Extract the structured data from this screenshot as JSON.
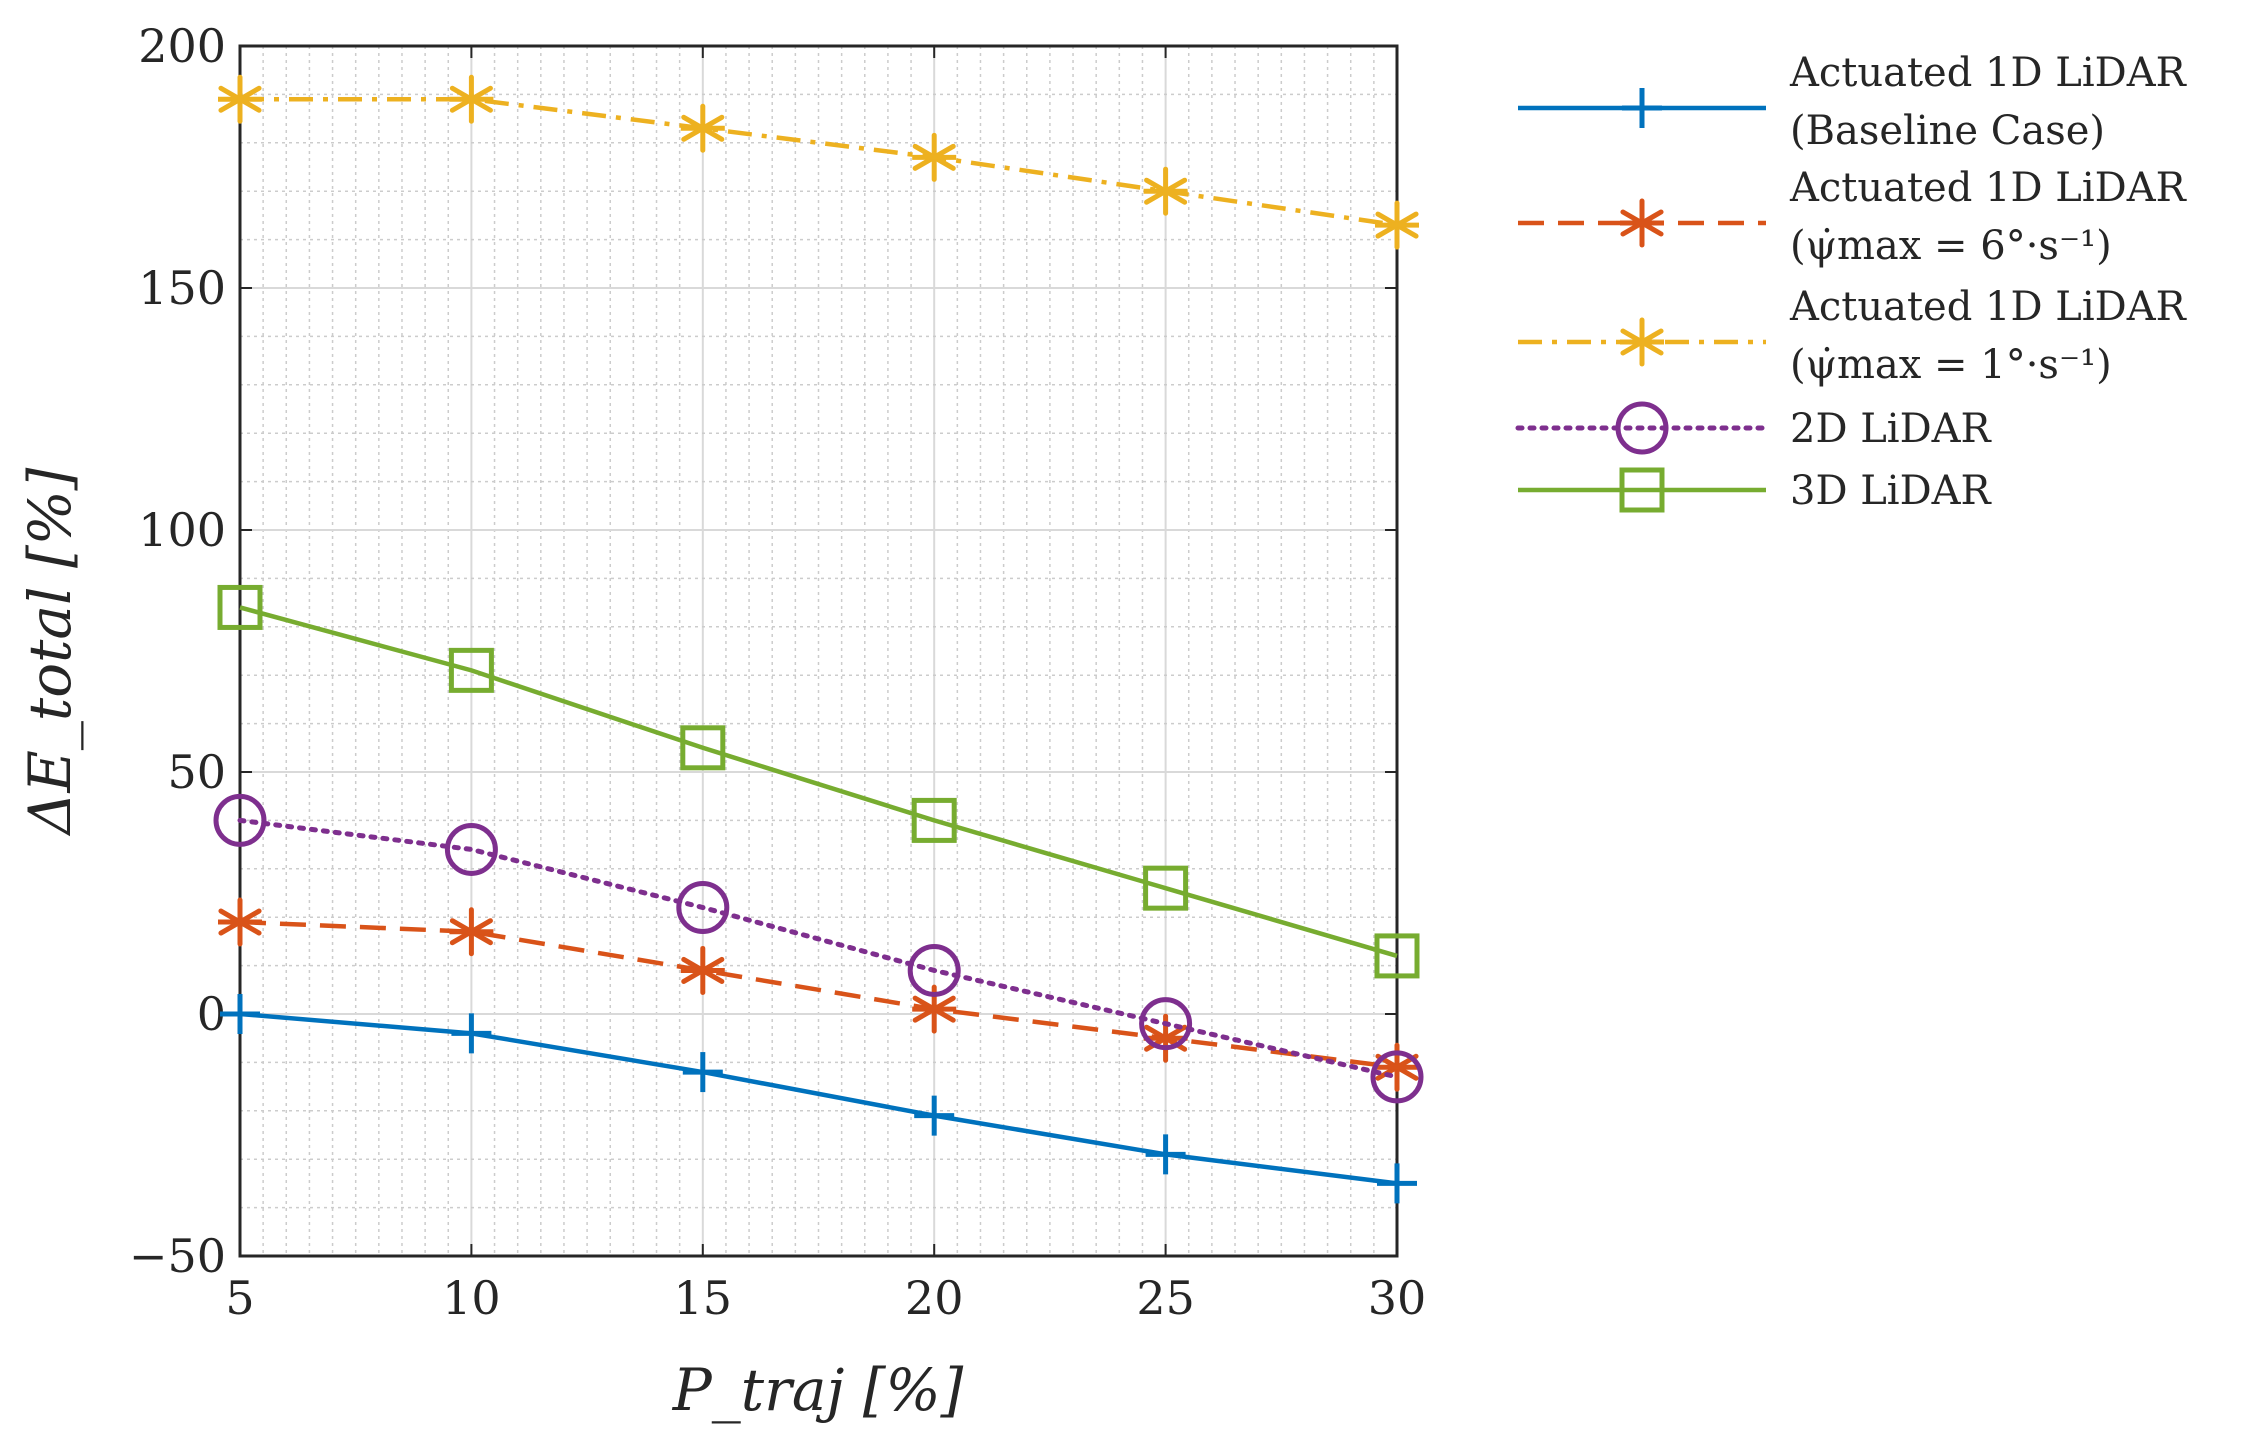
{
  "chart_data": {
    "type": "line",
    "title": "",
    "xlabel": "P_traj [%]",
    "ylabel": "ΔE_total [%]",
    "xlim": [
      5,
      30
    ],
    "ylim": [
      -50,
      200
    ],
    "xticks": [
      5,
      10,
      15,
      20,
      25,
      30
    ],
    "yticks": [
      -50,
      0,
      50,
      100,
      150,
      200
    ],
    "ytick_labels": [
      "−50",
      "0",
      "50",
      "100",
      "150",
      "200"
    ],
    "grid": true,
    "minor_grid": true,
    "legend_position": "outside-right",
    "x": [
      5,
      10,
      15,
      20,
      25,
      30
    ],
    "series": [
      {
        "name": "Actuated 1D LiDAR (Baseline Case)",
        "legend_lines": [
          "Actuated 1D LiDAR",
          "(Baseline Case)"
        ],
        "values": [
          0,
          -4,
          -12,
          -21,
          -29,
          -35
        ],
        "color": "#0072BD",
        "line_style": "solid",
        "marker": "plus"
      },
      {
        "name": "Actuated 1D LiDAR (ψ̇max = 6°·s⁻¹)",
        "legend_lines": [
          "Actuated 1D LiDAR",
          "(ψ̇max = 6°·s⁻¹)"
        ],
        "values": [
          19,
          17,
          9,
          1,
          -5,
          -11
        ],
        "color": "#D95319",
        "line_style": "dashed",
        "marker": "asterisk"
      },
      {
        "name": "Actuated 1D LiDAR (ψ̇max = 1°·s⁻¹)",
        "legend_lines": [
          "Actuated 1D LiDAR",
          "(ψ̇max = 1°·s⁻¹)"
        ],
        "values": [
          189,
          189,
          183,
          177,
          170,
          163
        ],
        "color": "#EDB120",
        "line_style": "dashdot",
        "marker": "asterisk"
      },
      {
        "name": "2D LiDAR",
        "legend_lines": [
          "2D LiDAR"
        ],
        "values": [
          40,
          34,
          22,
          9,
          -2,
          -13
        ],
        "color": "#7E2F8E",
        "line_style": "dotted",
        "marker": "circle"
      },
      {
        "name": "3D LiDAR",
        "legend_lines": [
          "3D LiDAR"
        ],
        "values": [
          84,
          71,
          55,
          40,
          26,
          12
        ],
        "color": "#77AC30",
        "line_style": "solid",
        "marker": "square"
      }
    ]
  }
}
